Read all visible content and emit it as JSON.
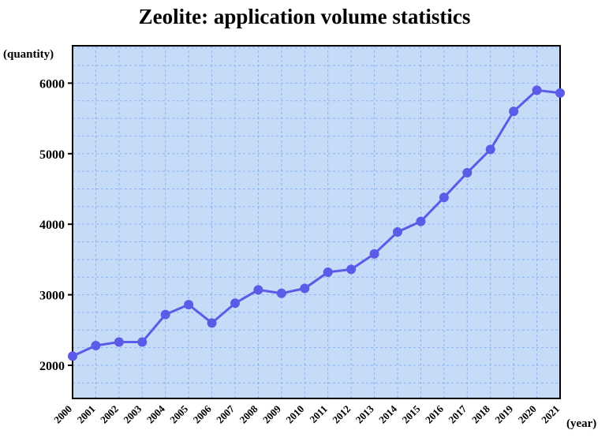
{
  "chart_data": {
    "type": "line",
    "title": "Zeolite: application volume statistics",
    "ylabel": "(quantity)",
    "xlabel": "(year)",
    "x": [
      "2000",
      "2001",
      "2002",
      "2003",
      "2004",
      "2005",
      "2006",
      "2007",
      "2008",
      "2009",
      "2010",
      "2011",
      "2012",
      "2013",
      "2014",
      "2015",
      "2016",
      "2017",
      "2018",
      "2019",
      "2020",
      "2021"
    ],
    "series": [
      {
        "values": [
          2130,
          2280,
          2330,
          2330,
          2720,
          2860,
          2600,
          2880,
          3070,
          3020,
          3090,
          3320,
          3360,
          3580,
          3890,
          4040,
          4380,
          4730,
          5060,
          5600,
          5900,
          5860
        ]
      }
    ],
    "yticks": [
      2000,
      3000,
      4000,
      5000,
      6000
    ],
    "ylim": [
      1530,
      6530
    ],
    "grid": true,
    "colors": {
      "plot_background": "#c6dbf7",
      "line": "#5b5be8",
      "grid": "#8fb2ec",
      "frame": "#000000"
    }
  }
}
